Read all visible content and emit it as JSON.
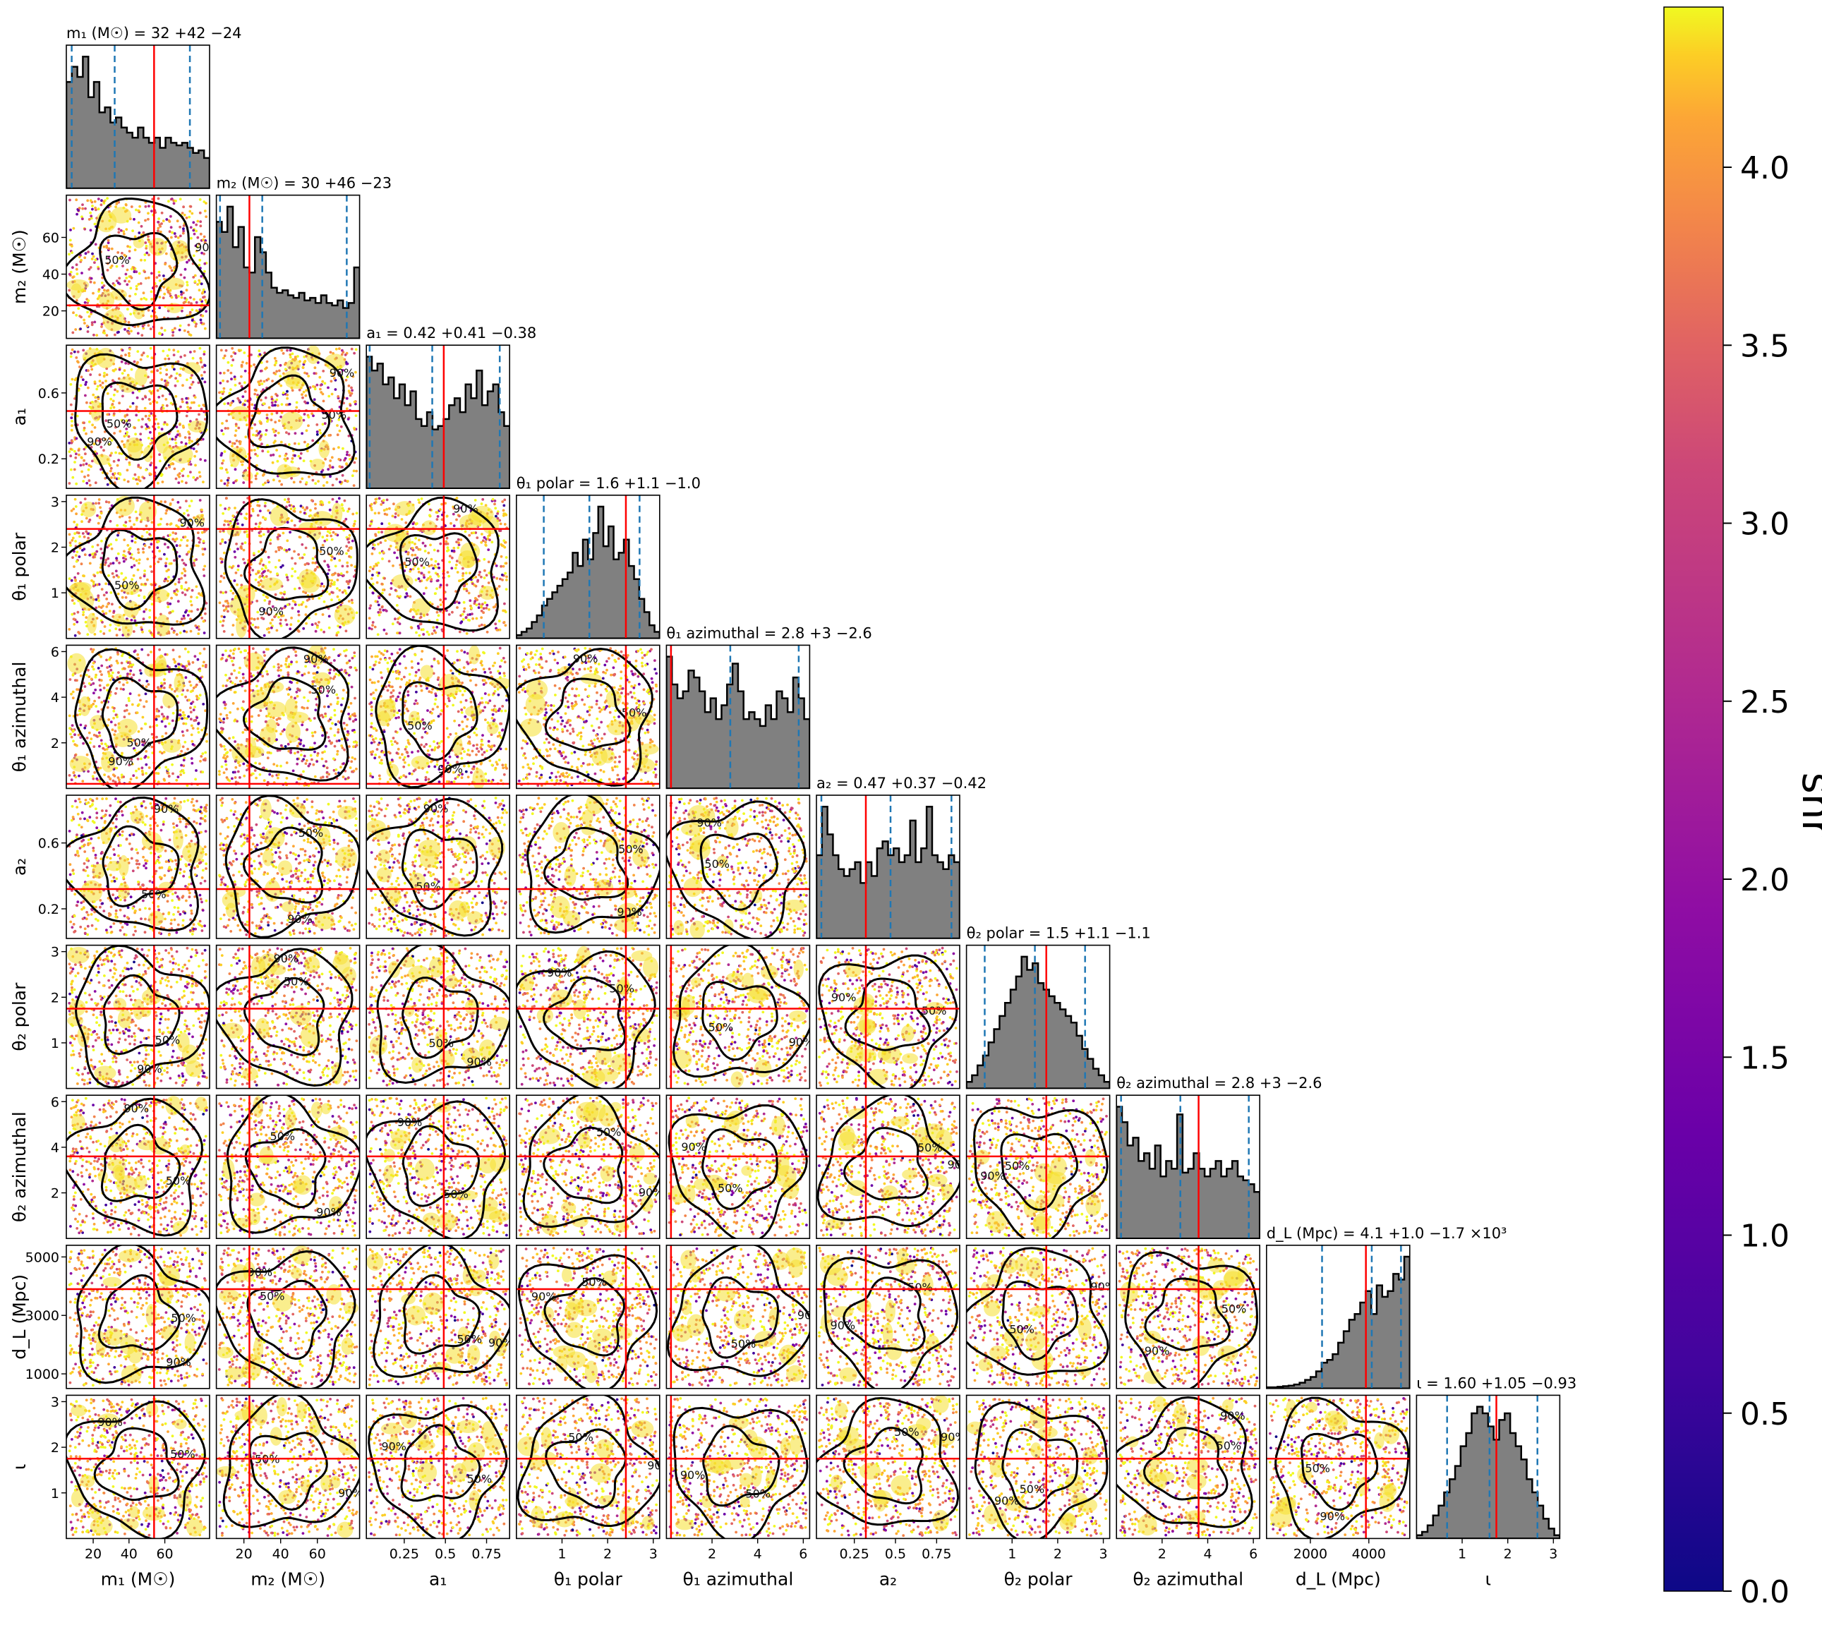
{
  "chart_data": {
    "type": "scatter",
    "subtype": "corner-plot",
    "parameters": [
      {
        "key": "m1",
        "label": "m₁ (M☉)",
        "range": [
          5,
          85
        ],
        "ticks": [
          20,
          40,
          60
        ],
        "injection": 54,
        "median": 32,
        "lower": 8,
        "upper": 74,
        "title": "m₁ (M☉) = 32 +42 −24"
      },
      {
        "key": "m2",
        "label": "m₂ (M☉)",
        "range": [
          5,
          83
        ],
        "ticks": [
          20,
          40,
          60
        ],
        "injection": 23,
        "median": 30,
        "lower": 7,
        "upper": 76,
        "title": "m₂ (M☉) = 30 +46 −23"
      },
      {
        "key": "a1",
        "label": "a₁",
        "range": [
          0.02,
          0.89
        ],
        "ticks": [
          0.2,
          0.6
        ],
        "ticks_x": [
          0.25,
          0.5,
          0.75
        ],
        "injection": 0.49,
        "median": 0.42,
        "lower": 0.04,
        "upper": 0.83,
        "title": "a₁ = 0.42 +0.41 −0.38"
      },
      {
        "key": "theta1_polar",
        "label": "θ₁ polar",
        "range": [
          0,
          3.14
        ],
        "ticks": [
          1,
          2,
          3
        ],
        "injection": 2.4,
        "median": 1.6,
        "lower": 0.6,
        "upper": 2.7,
        "title": "θ₁ polar = 1.6 +1.1 −1.0"
      },
      {
        "key": "theta1_azimuthal",
        "label": "θ₁ azimuthal",
        "range": [
          0,
          6.28
        ],
        "ticks": [
          2,
          4,
          6
        ],
        "injection": 0.2,
        "median": 2.8,
        "lower": 0.2,
        "upper": 5.8,
        "title": "θ₁ azimuthal = 2.8 +3 −2.6"
      },
      {
        "key": "a2",
        "label": "a₂",
        "range": [
          0.02,
          0.89
        ],
        "ticks": [
          0.2,
          0.6
        ],
        "ticks_x": [
          0.25,
          0.5,
          0.75
        ],
        "injection": 0.32,
        "median": 0.47,
        "lower": 0.05,
        "upper": 0.84,
        "title": "a₂ = 0.47 +0.37 −0.42"
      },
      {
        "key": "theta2_polar",
        "label": "θ₂ polar",
        "range": [
          0,
          3.14
        ],
        "ticks": [
          1,
          2,
          3
        ],
        "injection": 1.75,
        "median": 1.5,
        "lower": 0.4,
        "upper": 2.6,
        "title": "θ₂ polar = 1.5 +1.1 −1.1"
      },
      {
        "key": "theta2_azimuthal",
        "label": "θ₂ azimuthal",
        "range": [
          0,
          6.28
        ],
        "ticks": [
          2,
          4,
          6
        ],
        "injection": 3.6,
        "median": 2.8,
        "lower": 0.2,
        "upper": 5.8,
        "title": "θ₂ azimuthal = 2.8 +3 −2.6"
      },
      {
        "key": "dL",
        "label": "d_L (Mpc)",
        "range": [
          500,
          5400
        ],
        "ticks": [
          1000,
          3000,
          5000
        ],
        "ticks_x": [
          2000,
          4000
        ],
        "injection": 3900,
        "median": 4100,
        "lower": 2400,
        "upper": 5100,
        "title": "d_L (Mpc) = 4.1 +1.0 −1.7 ×10³"
      },
      {
        "key": "iota",
        "label": "ι",
        "range": [
          0,
          3.14
        ],
        "ticks": [
          1,
          2,
          3
        ],
        "injection": 1.75,
        "median": 1.6,
        "lower": 0.67,
        "upper": 2.65,
        "title": "ι = 1.60 +1.05 −0.93"
      }
    ],
    "histograms": [
      [
        2.1,
        2.4,
        2.2,
        2.6,
        1.8,
        2.1,
        1.5,
        1.6,
        1.3,
        1.4,
        1.2,
        1.1,
        1.0,
        1.2,
        1.0,
        0.9,
        1.0,
        0.8,
        1.0,
        0.9,
        0.85,
        0.9,
        0.8,
        0.7,
        0.75,
        0.6
      ],
      [
        2.3,
        2.1,
        2.6,
        1.8,
        2.2,
        1.4,
        1.3,
        2.0,
        1.7,
        1.3,
        1.0,
        0.9,
        0.95,
        0.85,
        0.8,
        0.9,
        0.75,
        0.8,
        0.7,
        0.85,
        0.7,
        0.65,
        0.75,
        0.6,
        0.7,
        1.4
      ],
      [
        1.9,
        1.7,
        1.8,
        1.5,
        1.6,
        1.3,
        1.5,
        1.2,
        1.4,
        1.0,
        0.9,
        1.1,
        0.85,
        0.9,
        1.0,
        1.2,
        1.3,
        1.1,
        1.5,
        1.3,
        1.7,
        1.2,
        1.4,
        1.5,
        1.1,
        0.9
      ],
      [
        0.05,
        0.1,
        0.15,
        0.25,
        0.35,
        0.5,
        0.6,
        0.7,
        0.8,
        0.9,
        1.0,
        1.3,
        1.1,
        1.5,
        1.2,
        1.6,
        2.0,
        1.4,
        1.7,
        1.2,
        1.3,
        1.5,
        1.1,
        0.9,
        0.6,
        0.4,
        0.2,
        0.1
      ],
      [
        1.9,
        1.5,
        1.3,
        1.4,
        1.7,
        1.6,
        1.4,
        1.1,
        1.3,
        1.0,
        1.2,
        1.5,
        1.8,
        1.4,
        1.0,
        1.1,
        1.0,
        0.9,
        1.2,
        1.0,
        1.4,
        1.3,
        1.1,
        1.6,
        1.3,
        1.0
      ],
      [
        1.2,
        1.9,
        1.5,
        1.2,
        1.0,
        0.9,
        1.0,
        1.1,
        0.8,
        1.1,
        0.9,
        1.3,
        1.4,
        1.2,
        1.3,
        1.1,
        1.2,
        1.7,
        1.1,
        1.3,
        1.9,
        1.2,
        1.1,
        1.0,
        1.2,
        1.1
      ],
      [
        0.1,
        0.2,
        0.35,
        0.5,
        0.7,
        0.9,
        1.1,
        1.3,
        1.5,
        1.7,
        2.0,
        1.8,
        1.9,
        1.6,
        1.5,
        1.4,
        1.3,
        1.2,
        1.1,
        1.0,
        0.8,
        0.6,
        0.45,
        0.3,
        0.2,
        0.1
      ],
      [
        1.7,
        1.5,
        1.2,
        1.3,
        1.0,
        1.1,
        0.9,
        1.2,
        0.8,
        1.0,
        0.9,
        1.6,
        0.85,
        0.9,
        1.1,
        0.9,
        0.8,
        0.9,
        1.0,
        0.8,
        0.9,
        1.0,
        0.8,
        0.75,
        0.7,
        0.6
      ],
      [
        0.02,
        0.02,
        0.03,
        0.04,
        0.05,
        0.07,
        0.1,
        0.15,
        0.2,
        0.3,
        0.45,
        0.5,
        0.6,
        0.8,
        1.0,
        1.2,
        1.3,
        1.5,
        1.7,
        1.3,
        1.8,
        1.6,
        1.7,
        2.0,
        1.9,
        2.3
      ],
      [
        0.05,
        0.1,
        0.2,
        0.35,
        0.5,
        0.7,
        0.9,
        1.1,
        1.4,
        1.6,
        1.9,
        2.0,
        1.9,
        1.7,
        1.5,
        1.8,
        1.9,
        1.6,
        1.4,
        1.2,
        0.9,
        0.7,
        0.5,
        0.3,
        0.15,
        0.05
      ]
    ],
    "contour_levels": [
      "50%",
      "90%"
    ],
    "colorbar": {
      "label": "snr",
      "range": [
        0.0,
        4.45
      ],
      "ticks": [
        "0.0",
        "0.5",
        "1.0",
        "1.5",
        "2.0",
        "2.5",
        "3.0",
        "3.5",
        "4.0"
      ],
      "colormap": "plasma"
    },
    "colors": {
      "injection": "#ff0000",
      "quantiles": "#1f77b4",
      "hist_fill": "#808080",
      "contour": "#000000"
    },
    "grid": false
  }
}
